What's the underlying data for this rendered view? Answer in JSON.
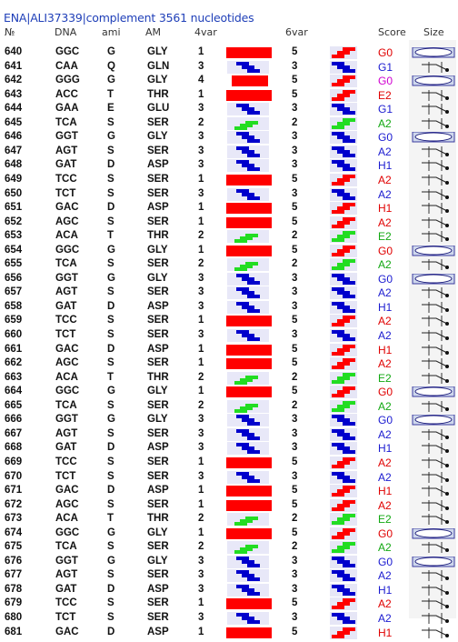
{
  "title": "ENA|ALI37339|complement 3561 nucleotides",
  "headers": {
    "no": "№",
    "dna": "DNA",
    "ami": "ami",
    "aa": "AM",
    "var4": "4var",
    "var6": "6var",
    "score": "Score",
    "size": "Size"
  },
  "colors": {
    "title": "#1f3fb8",
    "red_bar": "#ff0000",
    "blue_glyph": "#0000cc",
    "green_glyph": "#22dd22",
    "score_red": "#e00000",
    "score_blue": "#1a1ad0",
    "score_green": "#12a812",
    "score_magenta": "#d000d0"
  },
  "rows": [
    {
      "no": "640",
      "dna": "GGC",
      "ami": "G",
      "aa": "GLY",
      "v4": "1",
      "v6": "5",
      "score": "G0",
      "sc": "red"
    },
    {
      "no": "641",
      "dna": "CAA",
      "ami": "Q",
      "aa": "GLN",
      "v4": "3",
      "v6": "3",
      "score": "G1",
      "sc": "blue"
    },
    {
      "no": "642",
      "dna": "GGG",
      "ami": "G",
      "aa": "GLY",
      "v4": "4",
      "v6": "5",
      "score": "G0",
      "sc": "magenta"
    },
    {
      "no": "643",
      "dna": "ACC",
      "ami": "T",
      "aa": "THR",
      "v4": "1",
      "v6": "5",
      "score": "E2",
      "sc": "red"
    },
    {
      "no": "644",
      "dna": "GAA",
      "ami": "E",
      "aa": "GLU",
      "v4": "3",
      "v6": "3",
      "score": "G1",
      "sc": "blue"
    },
    {
      "no": "645",
      "dna": "TCA",
      "ami": "S",
      "aa": "SER",
      "v4": "2",
      "v6": "2",
      "score": "A2",
      "sc": "green"
    },
    {
      "no": "646",
      "dna": "GGT",
      "ami": "G",
      "aa": "GLY",
      "v4": "3",
      "v6": "3",
      "score": "G0",
      "sc": "blue"
    },
    {
      "no": "647",
      "dna": "AGT",
      "ami": "S",
      "aa": "SER",
      "v4": "3",
      "v6": "3",
      "score": "A2",
      "sc": "blue"
    },
    {
      "no": "648",
      "dna": "GAT",
      "ami": "D",
      "aa": "ASP",
      "v4": "3",
      "v6": "3",
      "score": "H1",
      "sc": "blue"
    },
    {
      "no": "649",
      "dna": "TCC",
      "ami": "S",
      "aa": "SER",
      "v4": "1",
      "v6": "5",
      "score": "A2",
      "sc": "red"
    },
    {
      "no": "650",
      "dna": "TCT",
      "ami": "S",
      "aa": "SER",
      "v4": "3",
      "v6": "3",
      "score": "A2",
      "sc": "blue"
    },
    {
      "no": "651",
      "dna": "GAC",
      "ami": "D",
      "aa": "ASP",
      "v4": "1",
      "v6": "5",
      "score": "H1",
      "sc": "red"
    },
    {
      "no": "652",
      "dna": "AGC",
      "ami": "S",
      "aa": "SER",
      "v4": "1",
      "v6": "5",
      "score": "A2",
      "sc": "red"
    },
    {
      "no": "653",
      "dna": "ACA",
      "ami": "T",
      "aa": "THR",
      "v4": "2",
      "v6": "2",
      "score": "E2",
      "sc": "green"
    },
    {
      "no": "654",
      "dna": "GGC",
      "ami": "G",
      "aa": "GLY",
      "v4": "1",
      "v6": "5",
      "score": "G0",
      "sc": "red"
    },
    {
      "no": "655",
      "dna": "TCA",
      "ami": "S",
      "aa": "SER",
      "v4": "2",
      "v6": "2",
      "score": "A2",
      "sc": "green"
    },
    {
      "no": "656",
      "dna": "GGT",
      "ami": "G",
      "aa": "GLY",
      "v4": "3",
      "v6": "3",
      "score": "G0",
      "sc": "blue"
    },
    {
      "no": "657",
      "dna": "AGT",
      "ami": "S",
      "aa": "SER",
      "v4": "3",
      "v6": "3",
      "score": "A2",
      "sc": "blue"
    },
    {
      "no": "658",
      "dna": "GAT",
      "ami": "D",
      "aa": "ASP",
      "v4": "3",
      "v6": "3",
      "score": "H1",
      "sc": "blue"
    },
    {
      "no": "659",
      "dna": "TCC",
      "ami": "S",
      "aa": "SER",
      "v4": "1",
      "v6": "5",
      "score": "A2",
      "sc": "red"
    },
    {
      "no": "660",
      "dna": "TCT",
      "ami": "S",
      "aa": "SER",
      "v4": "3",
      "v6": "3",
      "score": "A2",
      "sc": "blue"
    },
    {
      "no": "661",
      "dna": "GAC",
      "ami": "D",
      "aa": "ASP",
      "v4": "1",
      "v6": "5",
      "score": "H1",
      "sc": "red"
    },
    {
      "no": "662",
      "dna": "AGC",
      "ami": "S",
      "aa": "SER",
      "v4": "1",
      "v6": "5",
      "score": "A2",
      "sc": "red"
    },
    {
      "no": "663",
      "dna": "ACA",
      "ami": "T",
      "aa": "THR",
      "v4": "2",
      "v6": "2",
      "score": "E2",
      "sc": "green"
    },
    {
      "no": "664",
      "dna": "GGC",
      "ami": "G",
      "aa": "GLY",
      "v4": "1",
      "v6": "5",
      "score": "G0",
      "sc": "red"
    },
    {
      "no": "665",
      "dna": "TCA",
      "ami": "S",
      "aa": "SER",
      "v4": "2",
      "v6": "2",
      "score": "A2",
      "sc": "green"
    },
    {
      "no": "666",
      "dna": "GGT",
      "ami": "G",
      "aa": "GLY",
      "v4": "3",
      "v6": "3",
      "score": "G0",
      "sc": "blue"
    },
    {
      "no": "667",
      "dna": "AGT",
      "ami": "S",
      "aa": "SER",
      "v4": "3",
      "v6": "3",
      "score": "A2",
      "sc": "blue"
    },
    {
      "no": "668",
      "dna": "GAT",
      "ami": "D",
      "aa": "ASP",
      "v4": "3",
      "v6": "3",
      "score": "H1",
      "sc": "blue"
    },
    {
      "no": "669",
      "dna": "TCC",
      "ami": "S",
      "aa": "SER",
      "v4": "1",
      "v6": "5",
      "score": "A2",
      "sc": "red"
    },
    {
      "no": "670",
      "dna": "TCT",
      "ami": "S",
      "aa": "SER",
      "v4": "3",
      "v6": "3",
      "score": "A2",
      "sc": "blue"
    },
    {
      "no": "671",
      "dna": "GAC",
      "ami": "D",
      "aa": "ASP",
      "v4": "1",
      "v6": "5",
      "score": "H1",
      "sc": "red"
    },
    {
      "no": "672",
      "dna": "AGC",
      "ami": "S",
      "aa": "SER",
      "v4": "1",
      "v6": "5",
      "score": "A2",
      "sc": "red"
    },
    {
      "no": "673",
      "dna": "ACA",
      "ami": "T",
      "aa": "THR",
      "v4": "2",
      "v6": "2",
      "score": "E2",
      "sc": "green"
    },
    {
      "no": "674",
      "dna": "GGC",
      "ami": "G",
      "aa": "GLY",
      "v4": "1",
      "v6": "5",
      "score": "G0",
      "sc": "red"
    },
    {
      "no": "675",
      "dna": "TCA",
      "ami": "S",
      "aa": "SER",
      "v4": "2",
      "v6": "2",
      "score": "A2",
      "sc": "green"
    },
    {
      "no": "676",
      "dna": "GGT",
      "ami": "G",
      "aa": "GLY",
      "v4": "3",
      "v6": "3",
      "score": "G0",
      "sc": "blue"
    },
    {
      "no": "677",
      "dna": "AGT",
      "ami": "S",
      "aa": "SER",
      "v4": "3",
      "v6": "3",
      "score": "A2",
      "sc": "blue"
    },
    {
      "no": "678",
      "dna": "GAT",
      "ami": "D",
      "aa": "ASP",
      "v4": "3",
      "v6": "3",
      "score": "H1",
      "sc": "blue"
    },
    {
      "no": "679",
      "dna": "TCC",
      "ami": "S",
      "aa": "SER",
      "v4": "1",
      "v6": "5",
      "score": "A2",
      "sc": "red"
    },
    {
      "no": "680",
      "dna": "TCT",
      "ami": "S",
      "aa": "SER",
      "v4": "3",
      "v6": "3",
      "score": "A2",
      "sc": "blue"
    },
    {
      "no": "681",
      "dna": "GAC",
      "ami": "D",
      "aa": "ASP",
      "v4": "1",
      "v6": "5",
      "score": "H1",
      "sc": "red"
    }
  ]
}
